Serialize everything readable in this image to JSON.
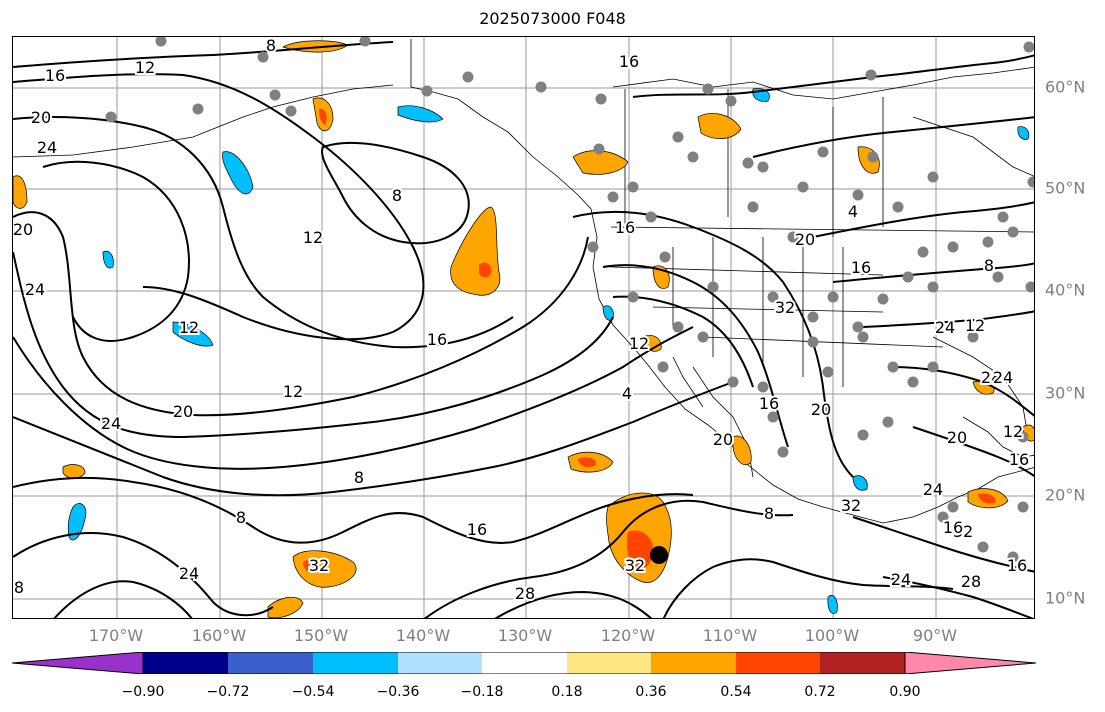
{
  "title": "2025073000 F048",
  "lon_labels": [
    "170°W",
    "160°W",
    "150°W",
    "140°W",
    "130°W",
    "120°W",
    "110°W",
    "100°W",
    "90°W"
  ],
  "lat_labels": [
    "60°N",
    "50°N",
    "40°N",
    "30°N",
    "20°N",
    "10°N"
  ],
  "contour_labels": [
    "16",
    "12",
    "8",
    "20",
    "24",
    "20",
    "24",
    "8",
    "12",
    "12",
    "12",
    "16",
    "20",
    "24",
    "8",
    "8",
    "16",
    "28",
    "32",
    "32",
    "24",
    "8",
    "4",
    "16",
    "16",
    "16",
    "20",
    "12",
    "24",
    "28",
    "32",
    "20",
    "24",
    "8",
    "20",
    "16",
    "24",
    "20",
    "32",
    "16",
    "24",
    "28",
    "16",
    "12",
    "16",
    "8",
    "32",
    "12",
    "4"
  ],
  "colorbar": {
    "labels": [
      "−0.90",
      "−0.72",
      "−0.54",
      "−0.36",
      "−0.18",
      "0.18",
      "0.36",
      "0.54",
      "0.72",
      "0.90"
    ],
    "colors": [
      "#9932cc",
      "#00008b",
      "#3a5fcd",
      "#00bfff",
      "#b0e2ff",
      "#ffffff",
      "#ffe680",
      "#ffa500",
      "#ff4500",
      "#b22222",
      "#ff88aa"
    ]
  },
  "colors": {
    "contour": "#000000",
    "grid": "#9a9a9a",
    "marker": "#808080",
    "center": "#000000"
  }
}
